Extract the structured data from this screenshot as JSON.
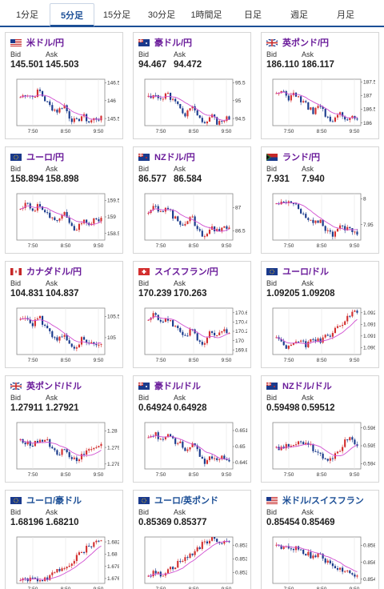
{
  "tabs": [
    "1分足",
    "5分足",
    "15分足",
    "30分足",
    "1時間足",
    "日足",
    "週足",
    "月足"
  ],
  "active_tab": 1,
  "labels": {
    "bid": "Bid",
    "ask": "Ask"
  },
  "colors": {
    "accent": "#1c4f96",
    "pair": "#6a1b9a",
    "up": "#d32f2f",
    "down": "#1a3a8c",
    "ma": "#d14fd1"
  },
  "cards": [
    {
      "pair": "米ドル/円",
      "flag": "us",
      "bid": "145.501",
      "ask": "145.503",
      "chart_data": {
        "type": "candlestick",
        "x": [
          "7:50",
          "8:50",
          "9:50"
        ],
        "yticks": [
          "146.5",
          "146",
          "145.5"
        ],
        "ylim": [
          145.3,
          146.6
        ],
        "trend": [
          146.1,
          146.2,
          146.1,
          146.3,
          146.0,
          145.8,
          145.7,
          145.9,
          145.5,
          145.4,
          145.6,
          145.4,
          145.5,
          145.5
        ]
      }
    },
    {
      "pair": "豪ドル/円",
      "flag": "au",
      "bid": "94.467",
      "ask": "94.472",
      "chart_data": {
        "type": "candlestick",
        "x": [
          "7:50",
          "8:50",
          "9:50"
        ],
        "yticks": [
          "95.5",
          "95",
          "94.5"
        ],
        "ylim": [
          94.3,
          95.6
        ],
        "trend": [
          95.1,
          95.2,
          95.0,
          95.2,
          95.0,
          94.8,
          94.6,
          94.9,
          94.5,
          94.3,
          94.6,
          94.4,
          94.5,
          94.5
        ]
      }
    },
    {
      "pair": "英ポンド/円",
      "flag": "uk",
      "bid": "186.110",
      "ask": "186.117",
      "chart_data": {
        "type": "candlestick",
        "x": [
          "7:50",
          "8:50",
          "9:50"
        ],
        "yticks": [
          "187.5",
          "187",
          "186.5",
          "186"
        ],
        "ylim": [
          185.9,
          187.6
        ],
        "trend": [
          187.0,
          187.2,
          186.9,
          187.1,
          186.8,
          186.6,
          186.4,
          186.7,
          186.2,
          186.0,
          186.4,
          186.1,
          186.2,
          186.1
        ]
      }
    },
    {
      "pair": "ユーロ/円",
      "flag": "eu",
      "bid": "158.894",
      "ask": "158.898",
      "chart_data": {
        "type": "candlestick",
        "x": [
          "7:50",
          "8:50",
          "9:50"
        ],
        "yticks": [
          "159.5",
          "159",
          "158.5"
        ],
        "ylim": [
          158.3,
          159.7
        ],
        "trend": [
          159.3,
          159.4,
          159.2,
          159.4,
          159.1,
          159.0,
          158.8,
          159.1,
          158.7,
          158.6,
          158.9,
          158.8,
          158.9,
          158.9
        ]
      }
    },
    {
      "pair": "NZドル/円",
      "flag": "nz",
      "bid": "86.577",
      "ask": "86.584",
      "chart_data": {
        "type": "candlestick",
        "x": [
          "7:50",
          "8:50",
          "9:50"
        ],
        "yticks": [
          "87",
          "86.5"
        ],
        "ylim": [
          86.3,
          87.3
        ],
        "trend": [
          86.9,
          87.0,
          86.9,
          87.0,
          86.8,
          86.7,
          86.6,
          86.8,
          86.5,
          86.4,
          86.6,
          86.5,
          86.6,
          86.6
        ]
      }
    },
    {
      "pair": "ランド/円",
      "flag": "za",
      "bid": "7.931",
      "ask": "7.940",
      "chart_data": {
        "type": "candlestick",
        "x": [
          "7:50",
          "8:50",
          "9:50"
        ],
        "yticks": [
          "8",
          "7.95"
        ],
        "ylim": [
          7.92,
          8.01
        ],
        "trend": [
          7.99,
          8.0,
          7.99,
          7.99,
          7.97,
          7.96,
          7.95,
          7.96,
          7.94,
          7.93,
          7.95,
          7.94,
          7.94,
          7.93
        ]
      }
    },
    {
      "pair": "カナダドル/円",
      "flag": "ca",
      "bid": "104.831",
      "ask": "104.837",
      "chart_data": {
        "type": "candlestick",
        "x": [
          "7:50",
          "8:50",
          "9:50"
        ],
        "yticks": [
          "105.5",
          "105"
        ],
        "ylim": [
          104.6,
          105.7
        ],
        "trend": [
          105.4,
          105.5,
          105.3,
          105.5,
          105.2,
          105.1,
          104.9,
          105.1,
          104.8,
          104.7,
          105.0,
          104.8,
          104.9,
          104.8
        ]
      }
    },
    {
      "pair": "スイスフラン/円",
      "flag": "ch",
      "bid": "170.239",
      "ask": "170.263",
      "chart_data": {
        "type": "candlestick",
        "x": [
          "7:50",
          "8:50",
          "9:50"
        ],
        "yticks": [
          "170.6",
          "170.4",
          "170.2",
          "170",
          "169.8"
        ],
        "ylim": [
          169.7,
          170.7
        ],
        "trend": [
          170.5,
          170.6,
          170.4,
          170.5,
          170.3,
          170.2,
          170.1,
          170.3,
          170.0,
          169.9,
          170.2,
          170.1,
          170.2,
          170.2
        ]
      }
    },
    {
      "pair": "ユーロ/ドル",
      "flag": "eu",
      "bid": "1.09205",
      "ask": "1.09208",
      "chart_data": {
        "type": "candlestick",
        "x": [
          "7:50",
          "8:50",
          "9:50"
        ],
        "yticks": [
          "1.092",
          "1.0915",
          "1.091",
          "1.0905"
        ],
        "ylim": [
          1.0902,
          1.0922
        ],
        "trend": [
          1.091,
          1.0906,
          1.0905,
          1.0908,
          1.0907,
          1.0906,
          1.0909,
          1.0908,
          1.091,
          1.0911,
          1.0914,
          1.0917,
          1.092,
          1.092
        ]
      }
    },
    {
      "pair": "英ポンド/ドル",
      "flag": "uk",
      "bid": "1.27911",
      "ask": "1.27921",
      "chart_data": {
        "type": "candlestick",
        "x": [
          "7:50",
          "8:50",
          "9:50"
        ],
        "yticks": [
          "1.28",
          "1.279",
          "1.278"
        ],
        "ylim": [
          1.2777,
          1.2805
        ],
        "trend": [
          1.2795,
          1.2793,
          1.2792,
          1.2794,
          1.2795,
          1.279,
          1.2786,
          1.2788,
          1.2784,
          1.2782,
          1.2786,
          1.2788,
          1.279,
          1.2791
        ]
      }
    },
    {
      "pair": "豪ドル/ドル",
      "flag": "au",
      "bid": "0.64924",
      "ask": "0.64928",
      "chart_data": {
        "type": "candlestick",
        "x": [
          "7:50",
          "8:50",
          "9:50"
        ],
        "yticks": [
          "0.651",
          "0.65",
          "0.649"
        ],
        "ylim": [
          0.6486,
          0.6515
        ],
        "trend": [
          0.6505,
          0.6508,
          0.6505,
          0.6507,
          0.6504,
          0.6502,
          0.6498,
          0.6502,
          0.6496,
          0.649,
          0.6494,
          0.6492,
          0.6493,
          0.6492
        ]
      }
    },
    {
      "pair": "NZドル/ドル",
      "flag": "nz",
      "bid": "0.59498",
      "ask": "0.59512",
      "chart_data": {
        "type": "candlestick",
        "x": [
          "7:50",
          "8:50",
          "9:50"
        ],
        "yticks": [
          "0.596",
          "0.595",
          "0.594"
        ],
        "ylim": [
          0.5937,
          0.5963
        ],
        "trend": [
          0.5948,
          0.595,
          0.5949,
          0.5952,
          0.5953,
          0.5951,
          0.5948,
          0.5946,
          0.5942,
          0.5944,
          0.5947,
          0.5952,
          0.5956,
          0.595
        ]
      }
    },
    {
      "pair": "ユーロ/豪ドル",
      "flag": "eu",
      "bid": "1.68196",
      "ask": "1.68210",
      "chart_data": {
        "type": "candlestick",
        "x": [
          "7:50",
          "8:50",
          "9:50"
        ],
        "yticks": [
          "1.682",
          "1.68",
          "1.678",
          "1.676"
        ],
        "ylim": [
          1.6752,
          1.6828
        ],
        "trend": [
          1.676,
          1.6758,
          1.6757,
          1.6759,
          1.676,
          1.6765,
          1.6772,
          1.6778,
          1.6785,
          1.6795,
          1.6805,
          1.6812,
          1.6818,
          1.682
        ]
      }
    },
    {
      "pair": "ユーロ/英ポンド",
      "flag": "eu",
      "bid": "0.85369",
      "ask": "0.85377",
      "chart_data": {
        "type": "candlestick",
        "x": [
          "7:50",
          "8:50",
          "9:50"
        ],
        "yticks": [
          "0.8535",
          "0.853",
          "0.8525"
        ],
        "ylim": [
          0.8521,
          0.8538
        ],
        "trend": [
          0.8524,
          0.8525,
          0.8524,
          0.8526,
          0.8527,
          0.8529,
          0.853,
          0.8532,
          0.8534,
          0.8536,
          0.8537,
          0.8537,
          0.8536,
          0.8537
        ]
      }
    },
    {
      "pair": "米ドル/スイスフラン",
      "flag": "us",
      "bid": "0.85454",
      "ask": "0.85469",
      "chart_data": {
        "type": "candlestick",
        "x": [
          "7:50",
          "8:50",
          "9:50"
        ],
        "yticks": [
          "0.858",
          "0.856",
          "0.854"
        ],
        "ylim": [
          0.8535,
          0.859
        ],
        "trend": [
          0.858,
          0.8578,
          0.8576,
          0.8578,
          0.8574,
          0.857,
          0.8566,
          0.8568,
          0.856,
          0.8556,
          0.8552,
          0.8548,
          0.8546,
          0.8545
        ]
      }
    }
  ]
}
